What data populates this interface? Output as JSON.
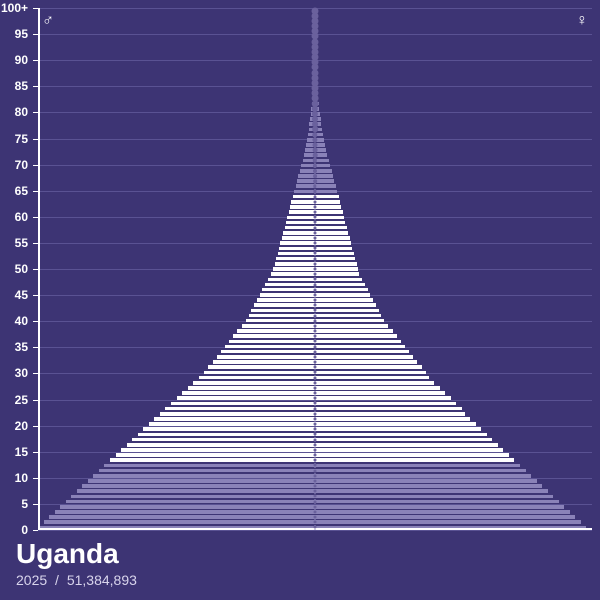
{
  "chart": {
    "type": "population-pyramid",
    "background_color": "#3d3474",
    "gridline_color": "#5a5293",
    "axis_color": "#ffffff",
    "bar_color_solid": "#ffffff",
    "bar_color_fade": "#8a82b8",
    "center_line_color": "#9890c4",
    "dot_color": "#6a619d",
    "male_symbol": "♂",
    "female_symbol": "♀",
    "y_ticks": [
      0,
      5,
      10,
      15,
      20,
      25,
      30,
      35,
      40,
      45,
      50,
      55,
      60,
      65,
      70,
      75,
      80,
      85,
      90,
      95,
      "100+"
    ],
    "age_max": 100,
    "ages": [
      {
        "age": 0,
        "m": 1.0,
        "f": 0.98,
        "fade": true
      },
      {
        "age": 1,
        "m": 0.98,
        "f": 0.96,
        "fade": true
      },
      {
        "age": 2,
        "m": 0.96,
        "f": 0.94,
        "fade": true
      },
      {
        "age": 3,
        "m": 0.94,
        "f": 0.92,
        "fade": true
      },
      {
        "age": 4,
        "m": 0.92,
        "f": 0.9,
        "fade": true
      },
      {
        "age": 5,
        "m": 0.9,
        "f": 0.88,
        "fade": true
      },
      {
        "age": 6,
        "m": 0.88,
        "f": 0.86,
        "fade": true
      },
      {
        "age": 7,
        "m": 0.86,
        "f": 0.84,
        "fade": true
      },
      {
        "age": 8,
        "m": 0.84,
        "f": 0.82,
        "fade": true
      },
      {
        "age": 9,
        "m": 0.82,
        "f": 0.8,
        "fade": true
      },
      {
        "age": 10,
        "m": 0.8,
        "f": 0.78,
        "fade": true
      },
      {
        "age": 11,
        "m": 0.78,
        "f": 0.76,
        "fade": true
      },
      {
        "age": 12,
        "m": 0.76,
        "f": 0.74,
        "fade": true
      },
      {
        "age": 13,
        "m": 0.74,
        "f": 0.72,
        "fade": false
      },
      {
        "age": 14,
        "m": 0.72,
        "f": 0.7,
        "fade": false
      },
      {
        "age": 15,
        "m": 0.7,
        "f": 0.68,
        "fade": false
      },
      {
        "age": 16,
        "m": 0.68,
        "f": 0.66,
        "fade": false
      },
      {
        "age": 17,
        "m": 0.66,
        "f": 0.64,
        "fade": false
      },
      {
        "age": 18,
        "m": 0.64,
        "f": 0.62,
        "fade": false
      },
      {
        "age": 19,
        "m": 0.62,
        "f": 0.6,
        "fade": false
      },
      {
        "age": 20,
        "m": 0.6,
        "f": 0.58,
        "fade": false
      },
      {
        "age": 21,
        "m": 0.58,
        "f": 0.56,
        "fade": false
      },
      {
        "age": 22,
        "m": 0.56,
        "f": 0.54,
        "fade": false
      },
      {
        "age": 23,
        "m": 0.54,
        "f": 0.53,
        "fade": false
      },
      {
        "age": 24,
        "m": 0.52,
        "f": 0.51,
        "fade": false
      },
      {
        "age": 25,
        "m": 0.5,
        "f": 0.49,
        "fade": false
      },
      {
        "age": 26,
        "m": 0.48,
        "f": 0.47,
        "fade": false
      },
      {
        "age": 27,
        "m": 0.46,
        "f": 0.45,
        "fade": false
      },
      {
        "age": 28,
        "m": 0.44,
        "f": 0.43,
        "fade": false
      },
      {
        "age": 29,
        "m": 0.42,
        "f": 0.41,
        "fade": false
      },
      {
        "age": 30,
        "m": 0.4,
        "f": 0.4,
        "fade": false
      },
      {
        "age": 31,
        "m": 0.385,
        "f": 0.385,
        "fade": false
      },
      {
        "age": 32,
        "m": 0.37,
        "f": 0.37,
        "fade": false
      },
      {
        "age": 33,
        "m": 0.355,
        "f": 0.355,
        "fade": false
      },
      {
        "age": 34,
        "m": 0.34,
        "f": 0.34,
        "fade": false
      },
      {
        "age": 35,
        "m": 0.325,
        "f": 0.325,
        "fade": false
      },
      {
        "age": 36,
        "m": 0.31,
        "f": 0.31,
        "fade": false
      },
      {
        "age": 37,
        "m": 0.295,
        "f": 0.295,
        "fade": false
      },
      {
        "age": 38,
        "m": 0.28,
        "f": 0.28,
        "fade": false
      },
      {
        "age": 39,
        "m": 0.265,
        "f": 0.265,
        "fade": false
      },
      {
        "age": 40,
        "m": 0.25,
        "f": 0.25,
        "fade": false
      },
      {
        "age": 41,
        "m": 0.24,
        "f": 0.24,
        "fade": false
      },
      {
        "age": 42,
        "m": 0.23,
        "f": 0.23,
        "fade": false
      },
      {
        "age": 43,
        "m": 0.22,
        "f": 0.22,
        "fade": false
      },
      {
        "age": 44,
        "m": 0.21,
        "f": 0.21,
        "fade": false
      },
      {
        "age": 45,
        "m": 0.2,
        "f": 0.2,
        "fade": false
      },
      {
        "age": 46,
        "m": 0.19,
        "f": 0.19,
        "fade": false
      },
      {
        "age": 47,
        "m": 0.18,
        "f": 0.18,
        "fade": false
      },
      {
        "age": 48,
        "m": 0.17,
        "f": 0.17,
        "fade": false
      },
      {
        "age": 49,
        "m": 0.16,
        "f": 0.16,
        "fade": false
      },
      {
        "age": 50,
        "m": 0.15,
        "f": 0.155,
        "fade": false
      },
      {
        "age": 51,
        "m": 0.145,
        "f": 0.15,
        "fade": false
      },
      {
        "age": 52,
        "m": 0.14,
        "f": 0.145,
        "fade": false
      },
      {
        "age": 53,
        "m": 0.135,
        "f": 0.14,
        "fade": false
      },
      {
        "age": 54,
        "m": 0.13,
        "f": 0.135,
        "fade": false
      },
      {
        "age": 55,
        "m": 0.125,
        "f": 0.13,
        "fade": false
      },
      {
        "age": 56,
        "m": 0.12,
        "f": 0.125,
        "fade": false
      },
      {
        "age": 57,
        "m": 0.115,
        "f": 0.12,
        "fade": false
      },
      {
        "age": 58,
        "m": 0.11,
        "f": 0.115,
        "fade": false
      },
      {
        "age": 59,
        "m": 0.105,
        "f": 0.11,
        "fade": false
      },
      {
        "age": 60,
        "m": 0.1,
        "f": 0.105,
        "fade": false
      },
      {
        "age": 61,
        "m": 0.095,
        "f": 0.1,
        "fade": false
      },
      {
        "age": 62,
        "m": 0.09,
        "f": 0.095,
        "fade": false
      },
      {
        "age": 63,
        "m": 0.085,
        "f": 0.09,
        "fade": false
      },
      {
        "age": 64,
        "m": 0.08,
        "f": 0.085,
        "fade": false
      },
      {
        "age": 65,
        "m": 0.075,
        "f": 0.08,
        "fade": true
      },
      {
        "age": 66,
        "m": 0.07,
        "f": 0.075,
        "fade": true
      },
      {
        "age": 67,
        "m": 0.065,
        "f": 0.07,
        "fade": true
      },
      {
        "age": 68,
        "m": 0.06,
        "f": 0.065,
        "fade": true
      },
      {
        "age": 69,
        "m": 0.055,
        "f": 0.06,
        "fade": true
      },
      {
        "age": 70,
        "m": 0.05,
        "f": 0.055,
        "fade": true
      },
      {
        "age": 71,
        "m": 0.045,
        "f": 0.05,
        "fade": true
      },
      {
        "age": 72,
        "m": 0.04,
        "f": 0.045,
        "fade": true
      },
      {
        "age": 73,
        "m": 0.036,
        "f": 0.04,
        "fade": true
      },
      {
        "age": 74,
        "m": 0.032,
        "f": 0.036,
        "fade": true
      },
      {
        "age": 75,
        "m": 0.028,
        "f": 0.032,
        "fade": true
      },
      {
        "age": 76,
        "m": 0.025,
        "f": 0.028,
        "fade": true
      },
      {
        "age": 77,
        "m": 0.022,
        "f": 0.025,
        "fade": true
      },
      {
        "age": 78,
        "m": 0.02,
        "f": 0.022,
        "fade": true
      },
      {
        "age": 79,
        "m": 0.018,
        "f": 0.02,
        "fade": true
      },
      {
        "age": 80,
        "m": 0.016,
        "f": 0.018,
        "fade": true
      },
      {
        "age": 81,
        "m": 0.014,
        "f": 0.016,
        "fade": true
      },
      {
        "age": 82,
        "m": 0.012,
        "f": 0.014,
        "fade": true
      },
      {
        "age": 83,
        "m": 0.011,
        "f": 0.012,
        "fade": true
      },
      {
        "age": 84,
        "m": 0.01,
        "f": 0.011,
        "fade": true
      },
      {
        "age": 85,
        "m": 0.009,
        "f": 0.01,
        "fade": true
      },
      {
        "age": 86,
        "m": 0.008,
        "f": 0.009,
        "fade": true
      },
      {
        "age": 87,
        "m": 0.007,
        "f": 0.008,
        "fade": true
      },
      {
        "age": 88,
        "m": 0.006,
        "f": 0.007,
        "fade": true
      },
      {
        "age": 89,
        "m": 0.0055,
        "f": 0.006,
        "fade": true
      },
      {
        "age": 90,
        "m": 0.005,
        "f": 0.0055,
        "fade": true
      },
      {
        "age": 91,
        "m": 0.0045,
        "f": 0.005,
        "fade": true
      },
      {
        "age": 92,
        "m": 0.004,
        "f": 0.0045,
        "fade": true
      },
      {
        "age": 93,
        "m": 0.0035,
        "f": 0.004,
        "fade": true
      },
      {
        "age": 94,
        "m": 0.003,
        "f": 0.0035,
        "fade": true
      },
      {
        "age": 95,
        "m": 0.0028,
        "f": 0.003,
        "fade": true
      },
      {
        "age": 96,
        "m": 0.0025,
        "f": 0.0028,
        "fade": true
      },
      {
        "age": 97,
        "m": 0.0022,
        "f": 0.0025,
        "fade": true
      },
      {
        "age": 98,
        "m": 0.002,
        "f": 0.0022,
        "fade": true
      },
      {
        "age": 99,
        "m": 0.0018,
        "f": 0.002,
        "fade": true
      },
      {
        "age": 100,
        "m": 0.0015,
        "f": 0.0018,
        "fade": true
      }
    ]
  },
  "footer": {
    "country": "Uganda",
    "year": "2025",
    "separator": "/",
    "population": "51,384,893"
  }
}
